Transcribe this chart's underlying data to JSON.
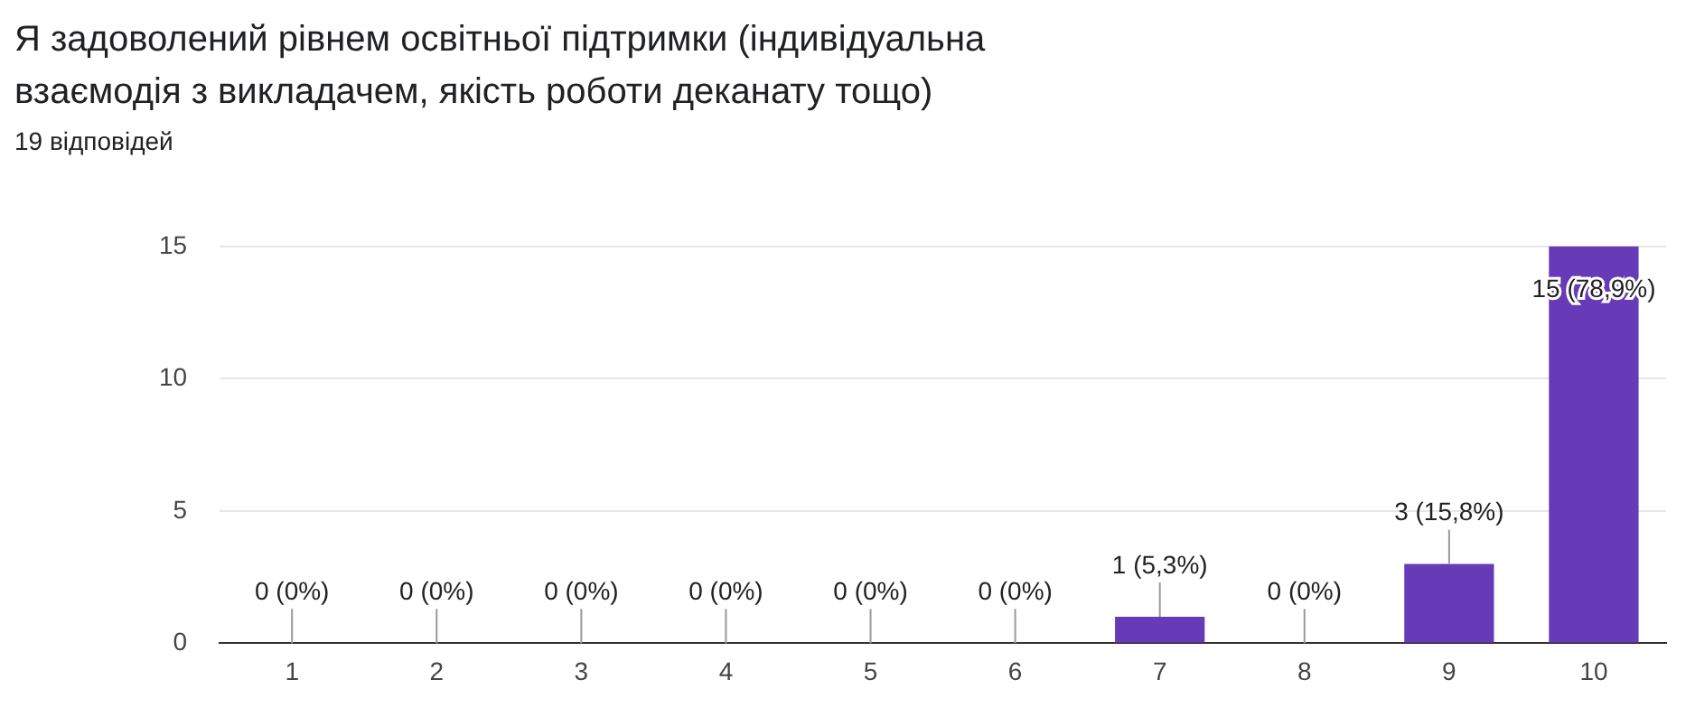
{
  "chart_data": {
    "type": "bar",
    "title": "Я задоволений рівнем освітньої підтримки (індивідуальна взаємодія з викладачем, якість роботи деканату тощо)",
    "subtitle": "19 відповідей",
    "categories": [
      "1",
      "2",
      "3",
      "4",
      "5",
      "6",
      "7",
      "8",
      "9",
      "10"
    ],
    "values": [
      0,
      0,
      0,
      0,
      0,
      0,
      1,
      0,
      3,
      15
    ],
    "value_labels": [
      "0 (0%)",
      "0 (0%)",
      "0 (0%)",
      "0 (0%)",
      "0 (0%)",
      "0 (0%)",
      "1 (5,3%)",
      "0 (0%)",
      "3 (15,8%)",
      "15 (78,9%)"
    ],
    "color": "#673ab7",
    "ylim": [
      0,
      15
    ],
    "yticks": [
      0,
      5,
      10,
      15
    ],
    "grid": "y",
    "legend": false
  }
}
